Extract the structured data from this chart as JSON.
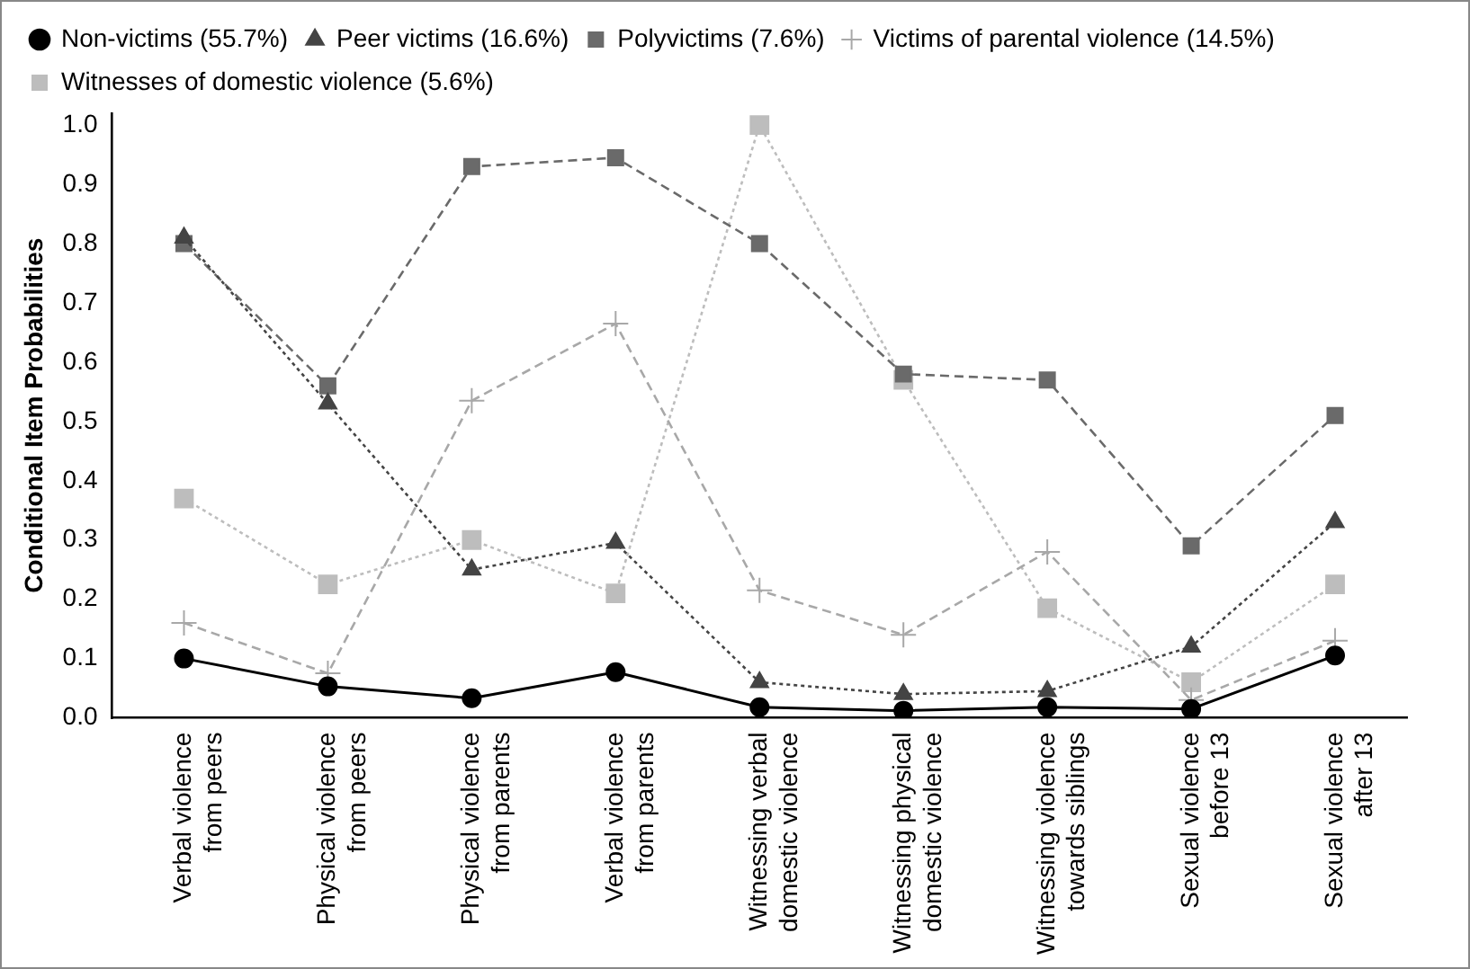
{
  "chart_data": {
    "type": "line",
    "ylabel": "Conditional Item Probabilities",
    "categories": [
      "Verbal violence from peers",
      "Physical violence from peers",
      "Physical violence from parents",
      "Verbal violence from parents",
      "Witnessing verbal domestic violence",
      "Witnessing physical domestic violence",
      "Witnessing violence towards siblings",
      "Sexual violence before 13",
      "Sexual violence after 13"
    ],
    "series": [
      {
        "name": "Non-victims (55.7%)",
        "color": "#000000",
        "marker": "circle",
        "line_style": "solid",
        "values": [
          0.1,
          0.053,
          0.033,
          0.077,
          0.018,
          0.012,
          0.018,
          0.015,
          0.105
        ]
      },
      {
        "name": "Peer victims (16.6%)",
        "color": "#444444",
        "marker": "triangle",
        "line_style": "dotted",
        "values": [
          0.81,
          0.53,
          0.25,
          0.295,
          0.06,
          0.04,
          0.045,
          0.12,
          0.33
        ]
      },
      {
        "name": "Polyvictims (7.6%)",
        "color": "#6a6a6a",
        "marker": "square",
        "line_style": "dashed",
        "values": [
          0.8,
          0.56,
          0.93,
          0.945,
          0.8,
          0.58,
          0.57,
          0.29,
          0.51
        ]
      },
      {
        "name": "Victims of parental violence (14.5%)",
        "color": "#a8a8a8",
        "marker": "cross",
        "line_style": "dashed",
        "values": [
          0.16,
          0.075,
          0.535,
          0.665,
          0.215,
          0.14,
          0.28,
          0.03,
          0.13
        ]
      },
      {
        "name": "Witnesses of domestic violence (5.6%)",
        "color": "#bdbdbd",
        "marker": "square",
        "line_style": "dotted",
        "values": [
          0.37,
          0.225,
          0.3,
          0.21,
          1.0,
          0.57,
          0.185,
          0.06,
          0.225
        ]
      }
    ],
    "ylim": [
      0,
      1.02
    ],
    "yticks": [
      {
        "value": 0,
        "label": "0.0"
      },
      0.1,
      0.2,
      0.3,
      0.4,
      0.5,
      0.6,
      0.7,
      0.8,
      0.9,
      {
        "value": 1,
        "label": "1.0"
      }
    ],
    "grid": false,
    "legend": "top"
  }
}
